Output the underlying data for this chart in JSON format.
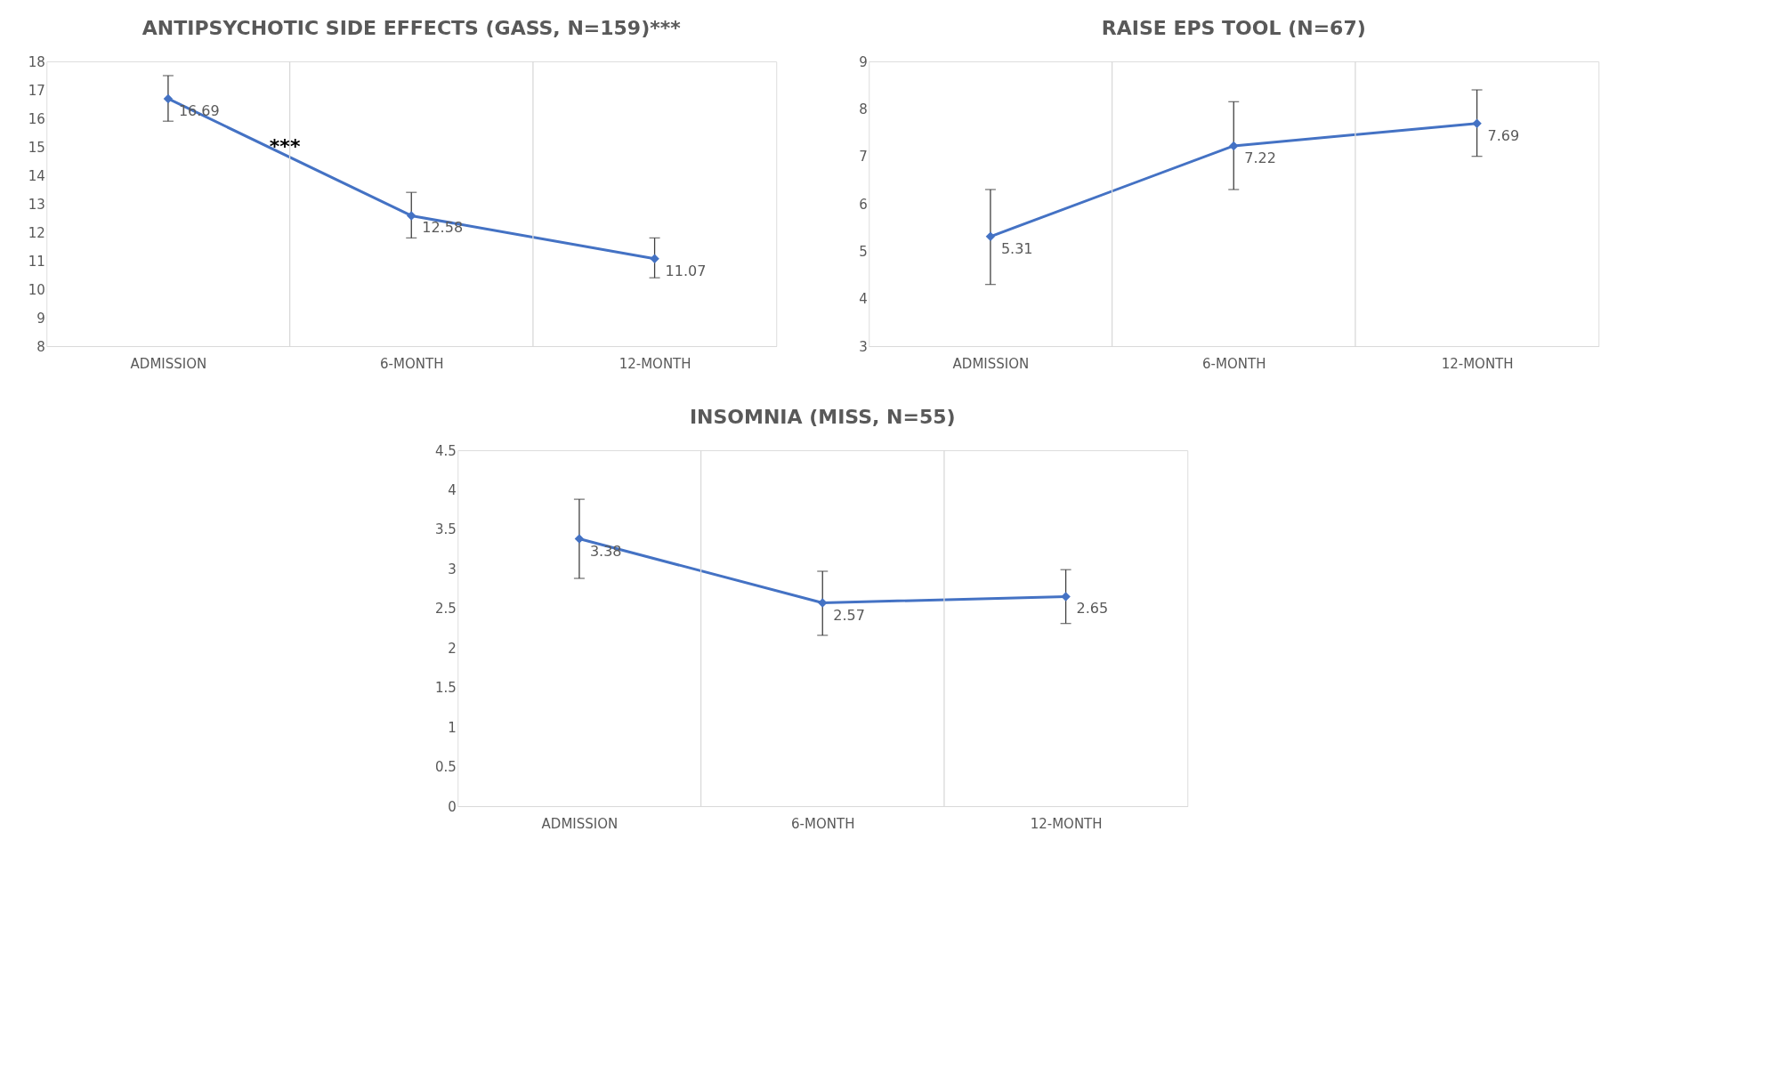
{
  "chart_data": [
    {
      "type": "line",
      "title": "ANTIPSYCHOTIC SIDE EFFECTS (GASS, N=159)***",
      "categories": [
        "ADMISSION",
        "6-MONTH",
        "12-MONTH"
      ],
      "series": [
        {
          "color": "#4472c4",
          "values": [
            16.69,
            12.58,
            11.07
          ],
          "errors": [
            [
              15.9,
              17.5
            ],
            [
              11.8,
              13.4
            ],
            [
              10.4,
              11.8
            ]
          ]
        }
      ],
      "ylim": [
        8,
        18
      ],
      "yticks": [
        8,
        9,
        10,
        11,
        12,
        13,
        14,
        15,
        16,
        17,
        18
      ],
      "grid": "x",
      "marker": "diamond",
      "data_labels": true,
      "annotations": [
        "***"
      ]
    },
    {
      "type": "line",
      "title": "RAISE EPS TOOL (N=67)",
      "categories": [
        "ADMISSION",
        "6-MONTH",
        "12-MONTH"
      ],
      "series": [
        {
          "color": "#4472c4",
          "values": [
            5.31,
            7.22,
            7.69
          ],
          "errors": [
            [
              4.3,
              6.3
            ],
            [
              6.3,
              8.15
            ],
            [
              7.0,
              8.4
            ]
          ]
        }
      ],
      "ylim": [
        3,
        9
      ],
      "yticks": [
        3,
        4,
        5,
        6,
        7,
        8,
        9
      ],
      "grid": "x",
      "marker": "diamond",
      "data_labels": true
    },
    {
      "type": "line",
      "title": "INSOMNIA (MISS, N=55)",
      "categories": [
        "ADMISSION",
        "6-MONTH",
        "12-MONTH"
      ],
      "series": [
        {
          "color": "#4472c4",
          "values": [
            3.38,
            2.57,
            2.65
          ],
          "errors": [
            [
              2.88,
              3.88
            ],
            [
              2.16,
              2.97
            ],
            [
              2.31,
              2.99
            ]
          ]
        }
      ],
      "ylim": [
        0,
        4.5
      ],
      "yticks": [
        0,
        0.5,
        1,
        1.5,
        2,
        2.5,
        3,
        3.5,
        4,
        4.5
      ],
      "grid": "x",
      "marker": "diamond",
      "data_labels": true
    }
  ]
}
